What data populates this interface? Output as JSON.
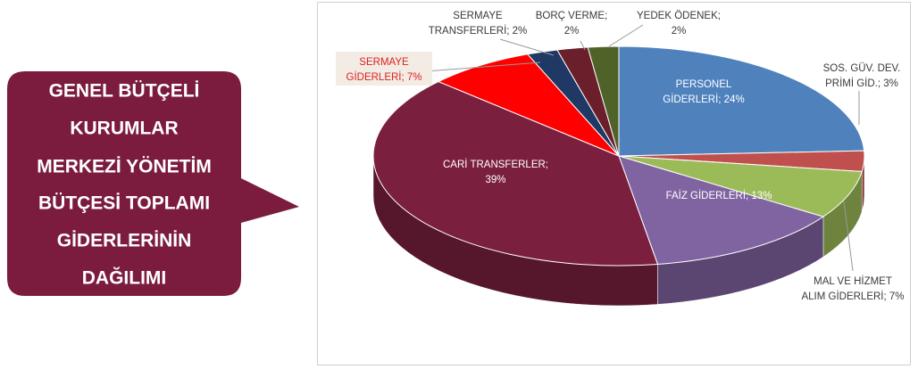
{
  "chart_data": {
    "type": "pie3d",
    "title": [
      "GENEL BÜTÇELİ",
      "KURUMLAR",
      "MERKEZİ YÖNETİM",
      "BÜTÇESİ TOPLAMI",
      "GİDERLERİNİN",
      "DAĞILIMI"
    ],
    "values": [
      24,
      3,
      7,
      13,
      39,
      7,
      2,
      2,
      2
    ],
    "value_labels": [
      [
        "PERSONEL",
        "GİDERLERİ; 24%"
      ],
      [
        "SOS. GÜV. DEV.",
        "PRİMİ GİD.; 3%"
      ],
      [
        "MAL VE HİZMET",
        "ALIM GİDERLERİ; 7%"
      ],
      [
        "FAİZ GİDERLERİ; 13%"
      ],
      [
        "CARİ TRANSFERLER;",
        "39%"
      ],
      [
        "SERMAYE",
        "GİDERLERİ; 7%"
      ],
      [
        "SERMAYE",
        "TRANSFERLERİ; 2%"
      ],
      [
        "BORÇ VERME;",
        "2%"
      ],
      [
        "YEDEK ÖDENEK;",
        "2%"
      ]
    ],
    "colors": [
      "#4f81bd",
      "#c0504d",
      "#9bbb59",
      "#8064a2",
      "#7b1f3e",
      "#ff0000",
      "#1f3864",
      "#6b1f2a",
      "#4f6228"
    ]
  }
}
